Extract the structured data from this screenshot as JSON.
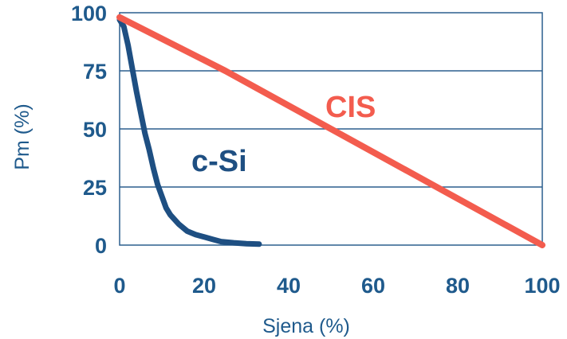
{
  "chart_data": {
    "type": "line",
    "xlabel": "Sjena (%)",
    "ylabel": "Pm (%)",
    "xlim": [
      0,
      100
    ],
    "ylim": [
      0,
      100
    ],
    "x_ticks": [
      "0",
      "20",
      "40",
      "60",
      "80",
      "100"
    ],
    "y_ticks": [
      "100",
      "75",
      "50",
      "25",
      "0"
    ],
    "grid": "horizontal",
    "legend": "inline labels",
    "colors": {
      "axis_text": "#1F5A8C",
      "grid": "#2B5F8E",
      "c_si": "#1E4F82",
      "cis": "#F35C4E"
    },
    "series": [
      {
        "name": "c-Si",
        "x": [
          0,
          1,
          2,
          3,
          4,
          5,
          6,
          7,
          8,
          9,
          10,
          11,
          12,
          14,
          16,
          18,
          20,
          22,
          24,
          27,
          30,
          33
        ],
        "y": [
          97,
          94,
          86,
          76,
          66,
          57,
          48,
          41,
          33,
          26,
          21,
          16,
          13,
          9,
          6,
          4.5,
          3.5,
          2.5,
          1.5,
          1,
          0.6,
          0.4
        ]
      },
      {
        "name": "CIS",
        "x": [
          0,
          25,
          50,
          75,
          100
        ],
        "y": [
          98,
          75,
          50,
          25,
          0
        ]
      }
    ]
  }
}
